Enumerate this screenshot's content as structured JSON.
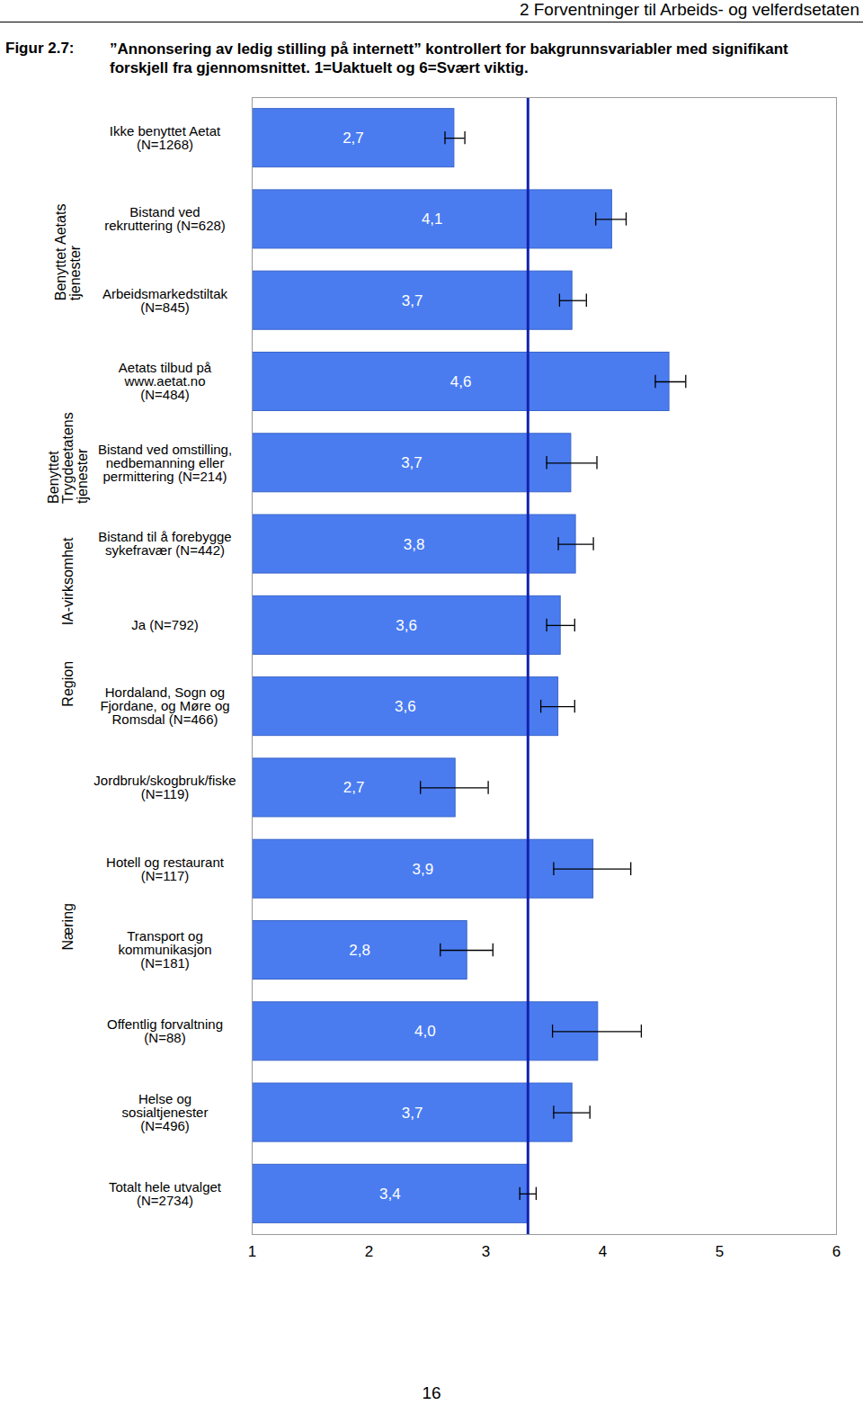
{
  "header": "2 Forventninger til Arbeids- og velferdsetaten",
  "page_number": 16,
  "chart_data": {
    "type": "bar",
    "orientation": "horizontal",
    "figure_label": "Figur 2.7:",
    "title": "”Annonsering av ledig stilling på internett” kontrollert for bakgrunnsvariabler med signifikant forskjell fra gjennomsnittet. 1=Uaktuelt og 6=Svært viktig.",
    "categories": [
      "Ikke benyttet Aetat (N=1268)",
      "Bistand ved rekruttering (N=628)",
      "Arbeidsmarkedstiltak (N=845)",
      "Aetats tilbud på www.aetat.no (N=484)",
      "Bistand ved omstilling, nedbemanning eller permittering (N=214)",
      "Bistand til å forebygge sykefravær (N=442)",
      "Ja (N=792)",
      "Hordaland, Sogn og Fjordane, og Møre og Romsdal (N=466)",
      "Jordbruk/skogbruk/fiske (N=119)",
      "Hotell og restaurant (N=117)",
      "Transport og kommunikasjon (N=181)",
      "Offentlig forvaltning (N=88)",
      "Helse og sosialtjenester (N=496)",
      "Totalt hele utvalget (N=2734)"
    ],
    "groups": [
      null,
      "Benyttet Aetats tjenester",
      "Benyttet Aetats tjenester",
      "Benyttet Aetats tjenester",
      "Benyttet Trygdeetatens tjenester",
      "Benyttet Trygdeetatens tjenester",
      "IA-virksomhet",
      "Region",
      "Næring",
      "Næring",
      "Næring",
      "Næring",
      "Næring",
      null
    ],
    "values": [
      2.73,
      4.08,
      3.74,
      4.57,
      3.73,
      3.77,
      3.64,
      3.62,
      2.74,
      3.92,
      2.84,
      3.96,
      3.74,
      3.36
    ],
    "value_labels": [
      "2,7",
      "4,1",
      "3,7",
      "4,6",
      "3,7",
      "3,8",
      "3,6",
      "3,6",
      "2,7",
      "3,9",
      "2,8",
      "4,0",
      "3,7",
      "3,4"
    ],
    "ci_low": [
      2.65,
      3.94,
      3.63,
      4.45,
      3.52,
      3.62,
      3.52,
      3.47,
      2.44,
      3.58,
      2.61,
      3.57,
      3.58,
      3.29
    ],
    "ci_high": [
      2.82,
      4.2,
      3.86,
      4.71,
      3.95,
      3.92,
      3.76,
      3.76,
      3.02,
      4.24,
      3.06,
      4.33,
      3.89,
      3.43
    ],
    "reference_line": 3.36,
    "color": "#4a7cf0",
    "xlim": [
      1,
      6
    ],
    "xticks": [
      1,
      2,
      3,
      4,
      5,
      6
    ],
    "data_labels": true,
    "grid": false
  }
}
